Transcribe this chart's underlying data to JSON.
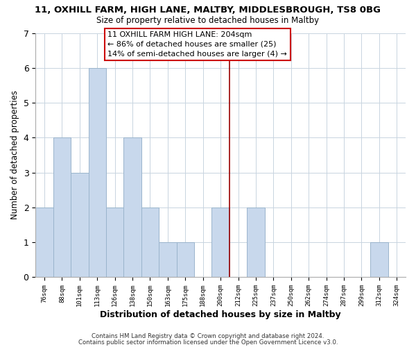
{
  "title_line1": "11, OXHILL FARM, HIGH LANE, MALTBY, MIDDLESBROUGH, TS8 0BG",
  "title_line2": "Size of property relative to detached houses in Maltby",
  "xlabel": "Distribution of detached houses by size in Maltby",
  "ylabel": "Number of detached properties",
  "footer_line1": "Contains HM Land Registry data © Crown copyright and database right 2024.",
  "footer_line2": "Contains public sector information licensed under the Open Government Licence v3.0.",
  "bar_labels": [
    "76sqm",
    "88sqm",
    "101sqm",
    "113sqm",
    "126sqm",
    "138sqm",
    "150sqm",
    "163sqm",
    "175sqm",
    "188sqm",
    "200sqm",
    "212sqm",
    "225sqm",
    "237sqm",
    "250sqm",
    "262sqm",
    "274sqm",
    "287sqm",
    "299sqm",
    "312sqm",
    "324sqm"
  ],
  "bar_values": [
    2,
    4,
    3,
    6,
    2,
    4,
    2,
    1,
    1,
    0,
    2,
    0,
    2,
    0,
    0,
    0,
    0,
    0,
    0,
    1,
    0
  ],
  "bar_color": "#c8d8ec",
  "bar_edge_color": "#9ab4cc",
  "vline_x": 10.5,
  "vline_color": "#990000",
  "ylim": [
    0,
    7
  ],
  "yticks": [
    0,
    1,
    2,
    3,
    4,
    5,
    6,
    7
  ],
  "annotation_text_line1": "11 OXHILL FARM HIGH LANE: 204sqm",
  "annotation_text_line2": "← 86% of detached houses are smaller (25)",
  "annotation_text_line3": "14% of semi-detached houses are larger (4) →",
  "background_color": "#ffffff",
  "plot_bg_color": "#ffffff",
  "grid_color": "#c8d4e0"
}
